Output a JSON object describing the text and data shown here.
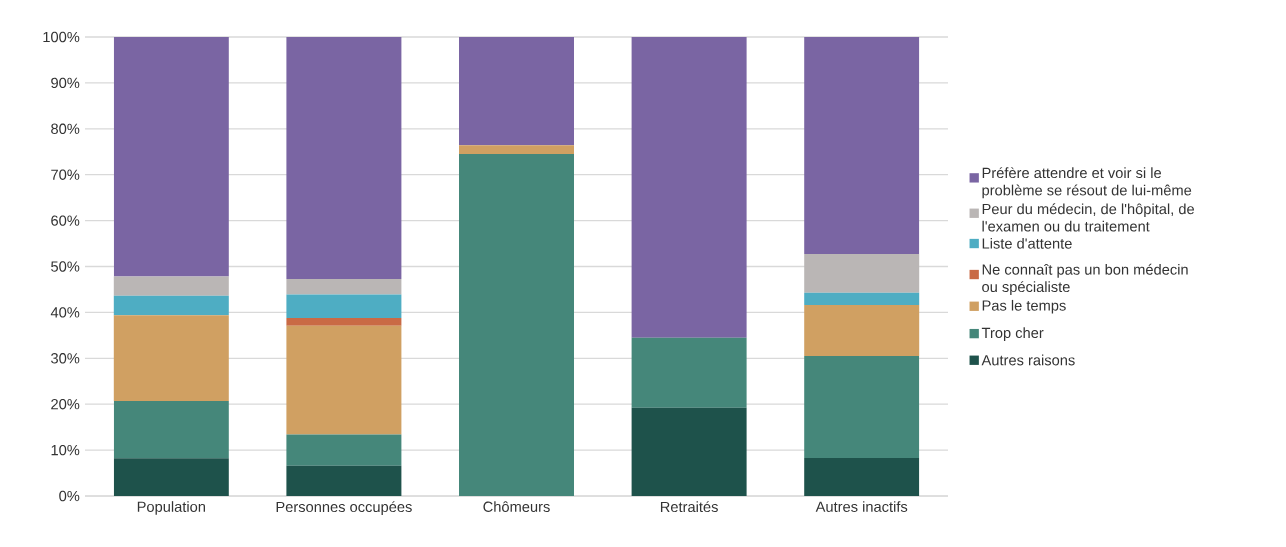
{
  "chart_data": {
    "type": "bar",
    "stacked": true,
    "categories": [
      "Population",
      "Personnes occupées",
      "Chômeurs",
      "Retraités",
      "Autres inactifs"
    ],
    "series": [
      {
        "name": "Autres raisons",
        "color": "#1e524b",
        "values": [
          8.2,
          6.6,
          0,
          19.2,
          8.3
        ]
      },
      {
        "name": "Trop cher",
        "color": "#45877a",
        "values": [
          12.5,
          6.8,
          74.5,
          15.3,
          22.2
        ]
      },
      {
        "name": "Pas le temps",
        "color": "#d0a062",
        "values": [
          18.7,
          23.7,
          1.9,
          0,
          11.1
        ]
      },
      {
        "name": "Ne connaît pas un bon médecin ou spécialiste",
        "color": "#c96a45",
        "values": [
          0,
          1.7,
          0,
          0,
          0
        ]
      },
      {
        "name": "Liste d'attente",
        "color": "#4eadc3",
        "values": [
          4.2,
          5.1,
          0,
          0,
          2.7
        ]
      },
      {
        "name": "Peur du médecin, de l'hôpital, de l'examen ou du traitement",
        "color": "#bab6b5",
        "values": [
          4.2,
          3.4,
          0,
          0,
          8.4
        ]
      },
      {
        "name": "Préfère attendre et voir si le problème se résout de lui-même",
        "color": "#7a65a3",
        "values": [
          52.2,
          52.7,
          23.6,
          65.5,
          47.3
        ]
      }
    ],
    "ylim": [
      0,
      100
    ],
    "yticks": [
      {
        "value": 0,
        "label": "0%"
      },
      {
        "value": 10,
        "label": "10%"
      },
      {
        "value": 20,
        "label": "20%"
      },
      {
        "value": 30,
        "label": "30%"
      },
      {
        "value": 40,
        "label": "40%"
      },
      {
        "value": 50,
        "label": "50%"
      },
      {
        "value": 60,
        "label": "60%"
      },
      {
        "value": 70,
        "label": "70%"
      },
      {
        "value": 80,
        "label": "80%"
      },
      {
        "value": 90,
        "label": "90%"
      },
      {
        "value": 100,
        "label": "100%"
      }
    ],
    "grid": "y",
    "legend": "right"
  }
}
